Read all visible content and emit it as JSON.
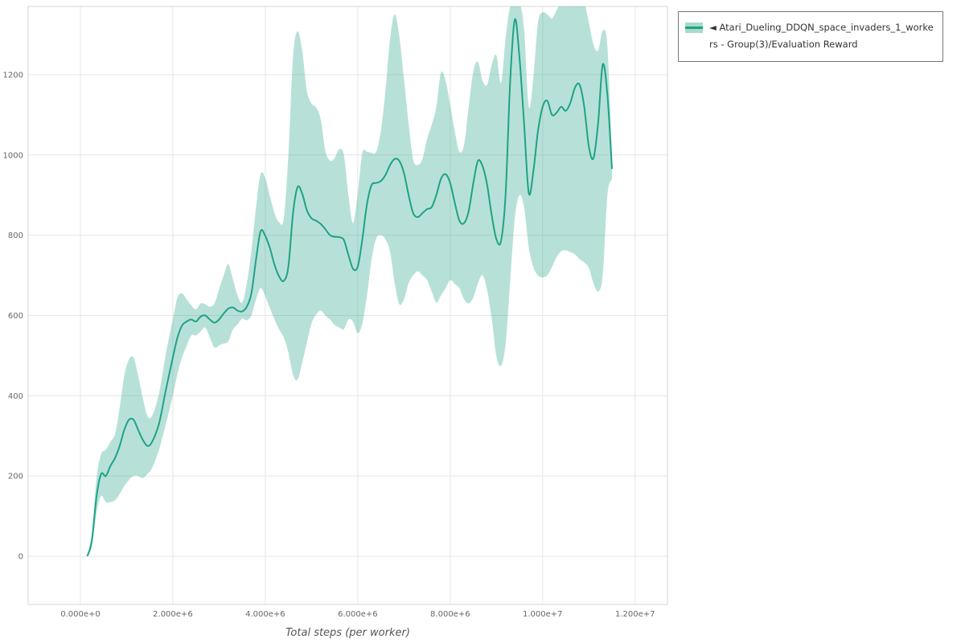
{
  "legend": {
    "label": "◄ Atari_Dueling_DDQN_space_invaders_1_workers - Group(3)/Evaluation Reward"
  },
  "axes": {
    "x_title": "Total steps (per worker)",
    "x_tick_labels": [
      "0.000e+0",
      "2.000e+6",
      "4.000e+6",
      "6.000e+6",
      "8.000e+6",
      "1.000e+7",
      "1.200e+7"
    ],
    "x_tick_values_millions": [
      0,
      2,
      4,
      6,
      8,
      10,
      12
    ],
    "y_tick_labels": [
      "0",
      "200",
      "400",
      "600",
      "800",
      "1000",
      "1200"
    ],
    "y_tick_values": [
      0,
      200,
      400,
      600,
      800,
      1000,
      1200
    ]
  },
  "chart_data": {
    "type": "line",
    "title": "",
    "xlabel": "Total steps (per worker)",
    "ylabel": "",
    "xlim_millions": [
      -1.13,
      12.7
    ],
    "ylim": [
      -120,
      1370
    ],
    "grid": true,
    "legend_position": "top-right",
    "colors": {
      "line": "#1ea287",
      "band": "#1ea287",
      "band_opacity": 0.32,
      "grid": "#e6e6e6",
      "axis": "#d5d5d5",
      "tick_text": "#666666"
    },
    "series": [
      {
        "name": "Atari_Dueling_DDQN_space_invaders_1_workers - Group(3)/Evaluation Reward",
        "x_millions": [
          0.15,
          0.25,
          0.35,
          0.45,
          0.55,
          0.65,
          0.75,
          0.85,
          0.95,
          1.05,
          1.15,
          1.25,
          1.35,
          1.45,
          1.55,
          1.7,
          1.85,
          2.0,
          2.1,
          2.2,
          2.3,
          2.4,
          2.5,
          2.6,
          2.7,
          2.8,
          2.9,
          3.0,
          3.1,
          3.2,
          3.3,
          3.4,
          3.5,
          3.6,
          3.7,
          3.8,
          3.9,
          4.0,
          4.1,
          4.2,
          4.3,
          4.4,
          4.5,
          4.6,
          4.7,
          4.8,
          4.9,
          5.0,
          5.1,
          5.2,
          5.3,
          5.4,
          5.5,
          5.6,
          5.7,
          5.8,
          5.9,
          6.0,
          6.1,
          6.2,
          6.3,
          6.4,
          6.5,
          6.6,
          6.7,
          6.8,
          6.9,
          7.0,
          7.1,
          7.2,
          7.3,
          7.4,
          7.5,
          7.6,
          7.7,
          7.8,
          7.9,
          8.0,
          8.1,
          8.2,
          8.3,
          8.4,
          8.5,
          8.6,
          8.7,
          8.8,
          8.9,
          9.0,
          9.1,
          9.2,
          9.3,
          9.4,
          9.5,
          9.6,
          9.7,
          9.8,
          9.9,
          10.0,
          10.1,
          10.2,
          10.3,
          10.4,
          10.5,
          10.6,
          10.7,
          10.8,
          10.9,
          11.0,
          11.1,
          11.2,
          11.3,
          11.4,
          11.5
        ],
        "mean": [
          0,
          40,
          150,
          205,
          200,
          225,
          245,
          275,
          315,
          340,
          340,
          315,
          290,
          275,
          285,
          330,
          415,
          495,
          545,
          575,
          585,
          590,
          585,
          597,
          600,
          590,
          582,
          590,
          605,
          617,
          620,
          612,
          610,
          622,
          655,
          740,
          810,
          798,
          768,
          726,
          697,
          686,
          722,
          855,
          920,
          903,
          862,
          842,
          836,
          828,
          815,
          800,
          796,
          795,
          788,
          750,
          716,
          722,
          790,
          878,
          925,
          930,
          935,
          950,
          975,
          990,
          985,
          955,
          900,
          855,
          845,
          855,
          865,
          870,
          900,
          940,
          952,
          930,
          880,
          836,
          830,
          860,
          930,
          985,
          972,
          925,
          848,
          790,
          786,
          905,
          1190,
          1338,
          1240,
          1075,
          905,
          960,
          1060,
          1120,
          1135,
          1100,
          1105,
          1120,
          1110,
          1130,
          1168,
          1175,
          1120,
          1020,
          992,
          1080,
          1225,
          1150,
          965
        ],
        "band_low": [
          0,
          25,
          110,
          150,
          135,
          135,
          140,
          155,
          175,
          190,
          200,
          200,
          195,
          205,
          220,
          265,
          330,
          400,
          455,
          495,
          525,
          550,
          550,
          560,
          570,
          545,
          520,
          525,
          530,
          535,
          565,
          578,
          592,
          588,
          600,
          640,
          668,
          648,
          618,
          590,
          565,
          545,
          508,
          452,
          440,
          483,
          532,
          580,
          602,
          612,
          600,
          590,
          576,
          570,
          566,
          590,
          584,
          556,
          580,
          650,
          740,
          792,
          800,
          790,
          758,
          680,
          628,
          640,
          680,
          700,
          710,
          700,
          688,
          660,
          632,
          650,
          668,
          688,
          678,
          668,
          640,
          630,
          645,
          680,
          700,
          663,
          590,
          498,
          475,
          530,
          690,
          845,
          900,
          868,
          770,
          720,
          700,
          695,
          700,
          720,
          745,
          760,
          762,
          758,
          752,
          740,
          732,
          718,
          680,
          660,
          700,
          900,
          940
        ],
        "band_high": [
          0,
          60,
          195,
          255,
          265,
          285,
          305,
          370,
          450,
          490,
          495,
          450,
          395,
          350,
          350,
          405,
          505,
          590,
          645,
          655,
          640,
          625,
          615,
          630,
          628,
          622,
          630,
          665,
          700,
          728,
          690,
          650,
          632,
          680,
          762,
          870,
          952,
          942,
          898,
          855,
          832,
          842,
          1000,
          1245,
          1308,
          1258,
          1160,
          1128,
          1118,
          1088,
          1010,
          986,
          992,
          1014,
          1000,
          898,
          830,
          905,
          1005,
          1008,
          1005,
          1008,
          1060,
          1160,
          1290,
          1350,
          1295,
          1190,
          1078,
          988,
          975,
          990,
          1040,
          1075,
          1120,
          1205,
          1185,
          1125,
          1058,
          1008,
          1025,
          1120,
          1208,
          1232,
          1185,
          1175,
          1225,
          1248,
          1180,
          1292,
          1372,
          1385,
          1380,
          1312,
          1120,
          1195,
          1330,
          1355,
          1350,
          1340,
          1360,
          1380,
          1385,
          1385,
          1385,
          1385,
          1380,
          1330,
          1275,
          1260,
          1310,
          1270,
          990
        ]
      }
    ]
  }
}
